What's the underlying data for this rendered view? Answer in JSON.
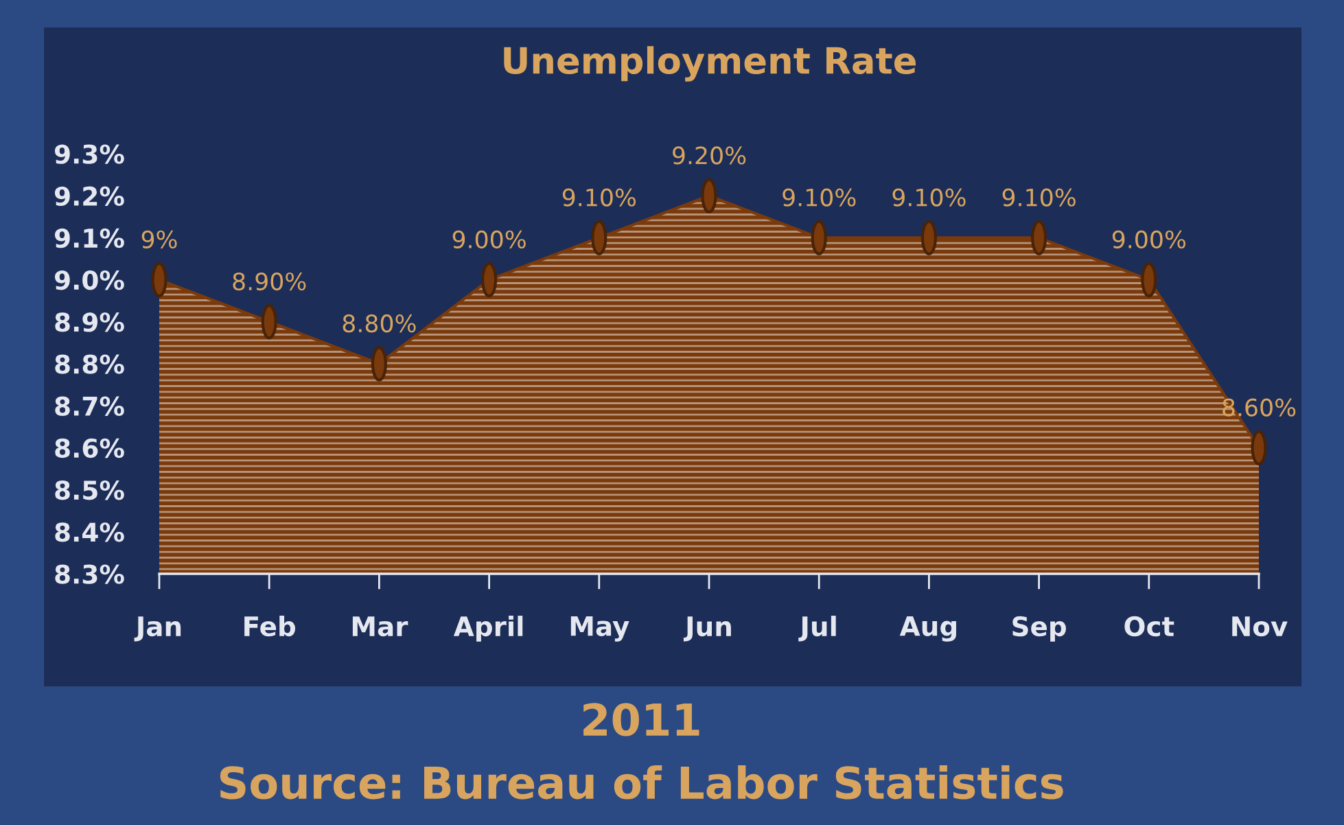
{
  "chart_data": {
    "type": "area",
    "title": "Unemployment Rate",
    "categories": [
      "Jan",
      "Feb",
      "Mar",
      "April",
      "May",
      "Jun",
      "Jul",
      "Aug",
      "Sep",
      "Oct",
      "Nov"
    ],
    "series": [
      {
        "color": "#7a3a0c",
        "values": [
          9.0,
          8.9,
          8.8,
          9.0,
          9.1,
          9.2,
          9.1,
          9.1,
          9.1,
          9.0,
          8.6
        ],
        "value_labels": [
          "9%",
          "8.90%",
          "8.80%",
          "9.00%",
          "9.10%",
          "9.20%",
          "9.10%",
          "9.10%",
          "9.10%",
          "9.00%",
          "8.60%"
        ]
      }
    ],
    "ylim": [
      8.3,
      9.3
    ],
    "yticks": [
      {
        "value": 8.3,
        "label": "8.3%"
      },
      {
        "value": 8.4,
        "label": "8.4%"
      },
      {
        "value": 8.5,
        "label": "8.5%"
      },
      {
        "value": 8.6,
        "label": "8.6%"
      },
      {
        "value": 8.7,
        "label": "8.7%"
      },
      {
        "value": 8.8,
        "label": "8.8%"
      },
      {
        "value": 8.9,
        "label": "8.9%"
      },
      {
        "value": 9.0,
        "label": "9.0%"
      },
      {
        "value": 9.1,
        "label": "9.1%"
      },
      {
        "value": 9.2,
        "label": "9.2%"
      },
      {
        "value": 9.3,
        "label": "9.3%"
      }
    ],
    "marker": "circle",
    "annotations": [
      "2011",
      "Source: Bureau of Labor Statistics"
    ]
  }
}
